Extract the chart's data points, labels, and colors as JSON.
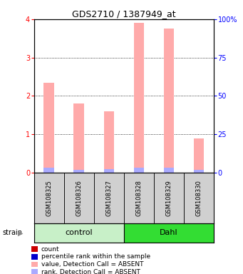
{
  "title": "GDS2710 / 1387949_at",
  "samples": [
    "GSM108325",
    "GSM108326",
    "GSM108327",
    "GSM108328",
    "GSM108329",
    "GSM108330"
  ],
  "value_absent": [
    2.35,
    1.8,
    1.6,
    3.9,
    3.75,
    0.9
  ],
  "rank_absent": [
    0.13,
    0.08,
    0.1,
    0.13,
    0.13,
    0.07
  ],
  "ylim_left": [
    0,
    4
  ],
  "ylim_right": [
    0,
    100
  ],
  "yticks_left": [
    0,
    1,
    2,
    3,
    4
  ],
  "yticks_right": [
    0,
    25,
    50,
    75,
    100
  ],
  "yticklabels_right": [
    "0",
    "25",
    "50",
    "75",
    "100%"
  ],
  "groups": [
    {
      "label": "control",
      "indices": [
        0,
        1,
        2
      ],
      "color": "#c8f0c8"
    },
    {
      "label": "Dahl",
      "indices": [
        3,
        4,
        5
      ],
      "color": "#33dd33"
    }
  ],
  "bar_width": 0.35,
  "color_value_absent": "#ffaaaa",
  "color_rank_absent": "#aaaaff",
  "color_count": "#cc0000",
  "color_percentile": "#0000cc",
  "bg_color": "#ffffff",
  "strain_label": "strain",
  "legend_items": [
    {
      "label": "count",
      "color": "#cc0000"
    },
    {
      "label": "percentile rank within the sample",
      "color": "#0000cc"
    },
    {
      "label": "value, Detection Call = ABSENT",
      "color": "#ffaaaa"
    },
    {
      "label": "rank, Detection Call = ABSENT",
      "color": "#aaaaff"
    }
  ]
}
